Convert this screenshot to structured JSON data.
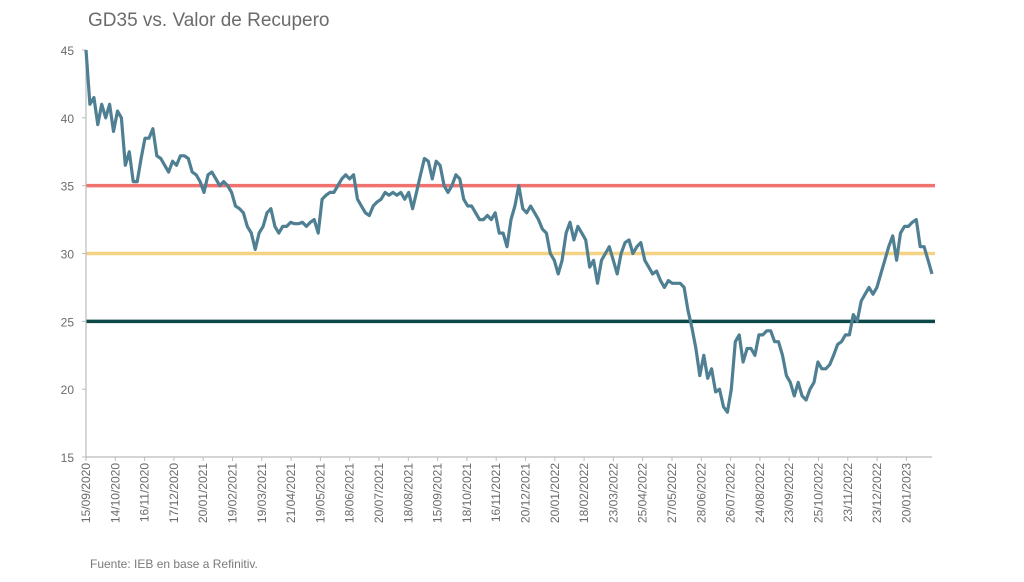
{
  "colors": {
    "series": "#4f7f92",
    "line35": "#f0726e",
    "line30": "#f4d484",
    "line25": "#0c4848",
    "axis": "#bbbbbb",
    "text": "#6b6b6b"
  },
  "chart_data": {
    "type": "line",
    "title": "GD35 vs. Valor de Recupero",
    "source": "Fuente: IEB en base a Refinitiv.",
    "xlabel": "",
    "ylabel": "",
    "ylim": [
      15,
      45
    ],
    "yticks": [
      15,
      20,
      25,
      30,
      35,
      40,
      45
    ],
    "grid": false,
    "xtick_labels": [
      "15/09/2020",
      "14/10/2020",
      "16/11/2020",
      "17/12/2020",
      "20/01/2021",
      "19/02/2021",
      "19/03/2021",
      "21/04/2021",
      "19/05/2021",
      "18/06/2021",
      "20/07/2021",
      "18/08/2021",
      "15/09/2021",
      "18/10/2021",
      "16/11/2021",
      "20/12/2021",
      "20/01/2022",
      "18/02/2022",
      "23/03/2022",
      "25/04/2022",
      "27/05/2022",
      "28/06/2022",
      "26/07/2022",
      "24/08/2022",
      "23/09/2022",
      "25/10/2022",
      "23/11/2022",
      "23/12/2022",
      "20/01/2023"
    ],
    "reference_lines": [
      {
        "name": "35",
        "value": 35
      },
      {
        "name": "30",
        "value": 30
      },
      {
        "name": "25",
        "value": 25
      }
    ],
    "series": [
      {
        "name": "GD35",
        "note": "evenly sampled from 15/09/2020 to end of period",
        "values": [
          45,
          41,
          41.5,
          39.5,
          41,
          40,
          41,
          39,
          40.5,
          40,
          36.5,
          37.5,
          35.3,
          35.3,
          37,
          38.5,
          38.5,
          39.2,
          37.2,
          37,
          36.5,
          36,
          36.8,
          36.5,
          37.2,
          37.2,
          37,
          36,
          35.8,
          35.3,
          34.5,
          35.8,
          36,
          35.5,
          35,
          35.3,
          35,
          34.5,
          33.5,
          33.3,
          33,
          32,
          31.5,
          30.3,
          31.5,
          32,
          33,
          33.3,
          32,
          31.5,
          32,
          32,
          32.3,
          32.2,
          32.2,
          32.3,
          32,
          32.3,
          32.5,
          31.5,
          34,
          34.3,
          34.5,
          34.5,
          35,
          35.5,
          35.8,
          35.5,
          35.8,
          34,
          33.5,
          33,
          32.8,
          33.5,
          33.8,
          34,
          34.5,
          34.3,
          34.5,
          34.3,
          34.5,
          34,
          34.5,
          33.3,
          34.5,
          35.8,
          37,
          36.8,
          35.5,
          36.8,
          36.5,
          35,
          34.5,
          35,
          35.8,
          35.5,
          34,
          33.5,
          33.5,
          33,
          32.5,
          32.5,
          32.8,
          32.5,
          33,
          31.5,
          31.5,
          30.5,
          32.5,
          33.5,
          35,
          33.3,
          33,
          33.5,
          33,
          32.5,
          31.8,
          31.5,
          30,
          29.5,
          28.5,
          29.5,
          31.5,
          32.3,
          31,
          32,
          31.5,
          31,
          29,
          29.5,
          27.8,
          29.5,
          30,
          30.5,
          29.5,
          28.5,
          30,
          30.8,
          31,
          30,
          30.5,
          30.8,
          29.5,
          29,
          28.5,
          28.7,
          28,
          27.5,
          28,
          27.8,
          27.8,
          27.8,
          27.5,
          25.8,
          24.5,
          23,
          21,
          22.5,
          20.8,
          21.5,
          19.8,
          20,
          18.7,
          18.3,
          20,
          23.5,
          24,
          22,
          23,
          23,
          22.5,
          24,
          24,
          24.3,
          24.3,
          23.5,
          23.5,
          22.5,
          21,
          20.5,
          19.5,
          20.5,
          19.5,
          19.2,
          20,
          20.5,
          22,
          21.5,
          21.5,
          21.8,
          22.5,
          23.3,
          23.5,
          24,
          24,
          25.5,
          25,
          26.5,
          27,
          27.5,
          27,
          27.5,
          28.5,
          29.5,
          30.5,
          31.3,
          29.5,
          31.5,
          32,
          32,
          32.3,
          32.5,
          30.5,
          30.5,
          29.5,
          28.5
        ]
      }
    ]
  }
}
